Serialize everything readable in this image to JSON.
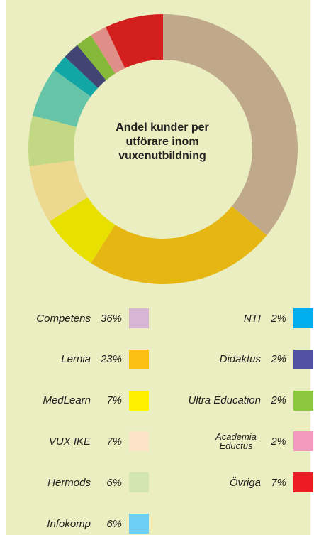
{
  "chart_data": {
    "type": "donut",
    "title": "Andel kunder per utförare inom vuxenutbildning",
    "categories": [
      "Competens",
      "Lernia",
      "MedLearn",
      "VUX IKE",
      "Hermods",
      "Infokomp",
      "NTI",
      "Didaktus",
      "Ultra Education",
      "Academia Eductus",
      "Övriga"
    ],
    "values": [
      36,
      23,
      7,
      7,
      6,
      6,
      2,
      2,
      2,
      2,
      7
    ],
    "value_labels": [
      "36%",
      "23%",
      "7%",
      "7%",
      "6%",
      "6%",
      "2%",
      "2%",
      "2%",
      "2%",
      "7%"
    ],
    "colors": [
      "#bfa98a",
      "#e6b612",
      "#e8e000",
      "#ecd98f",
      "#c3d884",
      "#66c5a8",
      "#12a6a6",
      "#424474",
      "#86b83a",
      "#e08e88",
      "#d41f1f"
    ],
    "legend_colors": [
      "#d6b6d2",
      "#fbbf14",
      "#fff100",
      "#fde4c9",
      "#d3e6b2",
      "#6ecff6",
      "#00aeef",
      "#5151a2",
      "#8dc63f",
      "#f49ac1",
      "#ed1c24"
    ]
  }
}
